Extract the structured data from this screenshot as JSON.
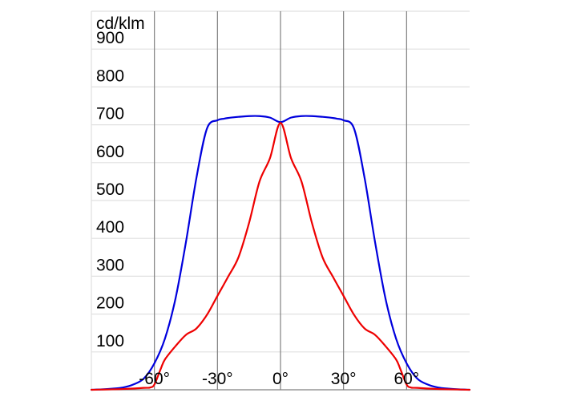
{
  "chart_data": {
    "type": "line",
    "title": "",
    "xlabel": "",
    "ylabel": "cd/klm",
    "xlim": [
      -90,
      90
    ],
    "ylim": [
      0,
      1000
    ],
    "x_ticks": [
      {
        "value": -60,
        "label": "-60°"
      },
      {
        "value": -30,
        "label": "-30°"
      },
      {
        "value": 0,
        "label": "0°"
      },
      {
        "value": 30,
        "label": "30°"
      },
      {
        "value": 60,
        "label": "60°"
      }
    ],
    "y_ticks": [
      {
        "value": 100,
        "label": "100"
      },
      {
        "value": 200,
        "label": "200"
      },
      {
        "value": 300,
        "label": "300"
      },
      {
        "value": 400,
        "label": "400"
      },
      {
        "value": 500,
        "label": "500"
      },
      {
        "value": 600,
        "label": "600"
      },
      {
        "value": 700,
        "label": "700"
      },
      {
        "value": 800,
        "label": "800"
      },
      {
        "value": 900,
        "label": "900"
      }
    ],
    "grid": true,
    "legend": "none",
    "series": [
      {
        "color": "#0000dd",
        "x": [
          -90,
          -85,
          -80,
          -75,
          -70,
          -65,
          -60,
          -55,
          -50,
          -45,
          -40,
          -35,
          -30,
          -27,
          -25,
          -22,
          -20,
          -15,
          -10,
          -5,
          0,
          5,
          10,
          15,
          20,
          22,
          25,
          27,
          30,
          35,
          40,
          45,
          50,
          55,
          60,
          65,
          70,
          75,
          80,
          85,
          90
        ],
        "y": [
          0,
          1,
          3,
          6,
          14,
          30,
          70,
          135,
          240,
          390,
          560,
          690,
          712,
          716,
          718,
          720,
          721,
          723,
          723,
          719,
          707,
          719,
          723,
          723,
          721,
          720,
          718,
          716,
          712,
          690,
          560,
          390,
          240,
          135,
          70,
          30,
          14,
          6,
          3,
          1,
          0
        ]
      },
      {
        "color": "#ee0000",
        "x": [
          -90,
          -75,
          -65,
          -62,
          -60,
          -57,
          -55,
          -50,
          -45,
          -40,
          -35,
          -30,
          -25,
          -20,
          -15,
          -10,
          -5,
          0,
          5,
          10,
          15,
          20,
          25,
          30,
          35,
          40,
          45,
          50,
          55,
          57,
          60,
          62,
          65,
          75,
          90
        ],
        "y": [
          0,
          2,
          5,
          6,
          14,
          55,
          80,
          115,
          145,
          162,
          198,
          248,
          298,
          350,
          440,
          550,
          612,
          705,
          612,
          550,
          440,
          350,
          298,
          248,
          198,
          162,
          145,
          115,
          80,
          55,
          14,
          6,
          5,
          2,
          0
        ]
      }
    ]
  }
}
